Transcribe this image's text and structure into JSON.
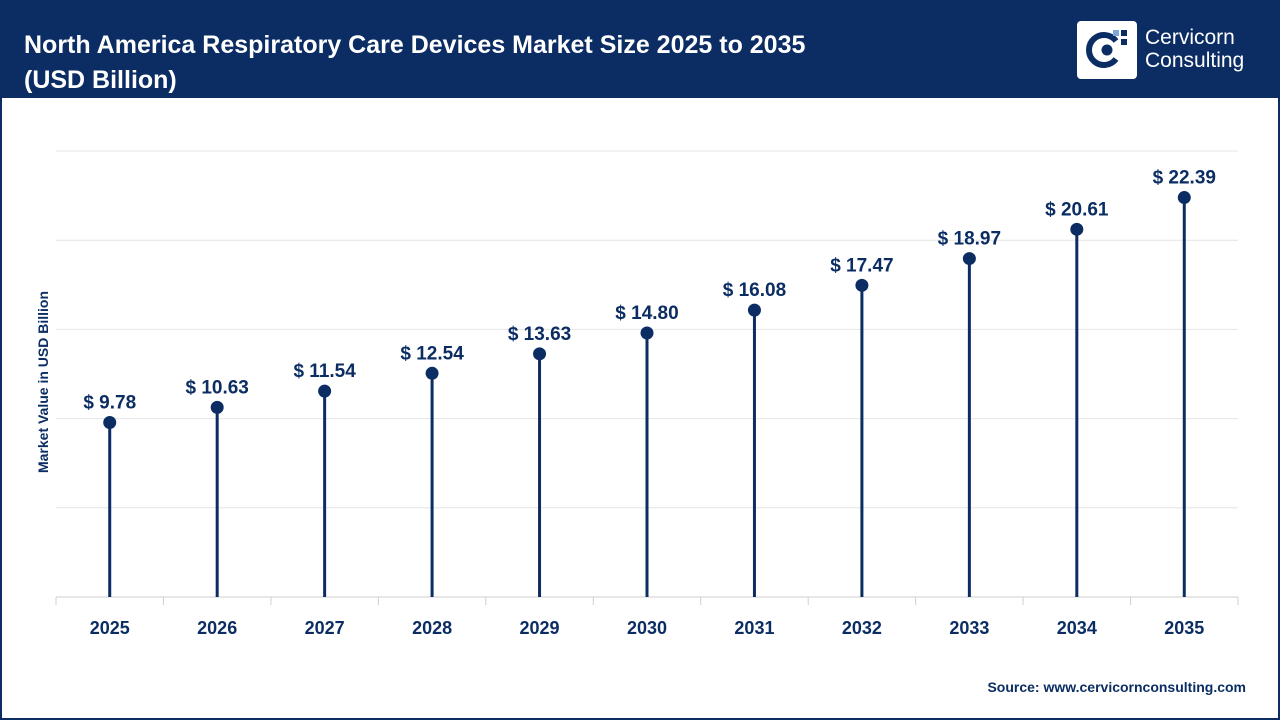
{
  "header": {
    "title_line1": "North America Respiratory Care Devices Market Size 2025 to 2035",
    "title_line2": "(USD Billion)",
    "logo_line1": "Cervicorn",
    "logo_line2": "Consulting"
  },
  "footer": {
    "source": "Source: www.cervicornconsulting.com"
  },
  "colors": {
    "brand": "#0b2d63",
    "grid": "#e4e4e4",
    "axis": "#cfcfcf"
  },
  "chart_data": {
    "type": "lollipop",
    "title": "North America Respiratory Care Devices Market Size 2025 to 2035 (USD Billion)",
    "xlabel": "",
    "ylabel": "Market Value in USD Billion",
    "ylim": [
      0,
      25
    ],
    "grid": true,
    "label_prefix": "$ ",
    "categories": [
      "2025",
      "2026",
      "2027",
      "2028",
      "2029",
      "2030",
      "2031",
      "2032",
      "2033",
      "2034",
      "2035"
    ],
    "values": [
      9.78,
      10.63,
      11.54,
      12.54,
      13.63,
      14.8,
      16.08,
      17.47,
      18.97,
      20.61,
      22.39
    ],
    "value_labels": [
      "9.78",
      "10.63",
      "11.54",
      "12.54",
      "13.63",
      "14.80",
      "16.08",
      "17.47",
      "18.97",
      "20.61",
      "22.39"
    ]
  }
}
